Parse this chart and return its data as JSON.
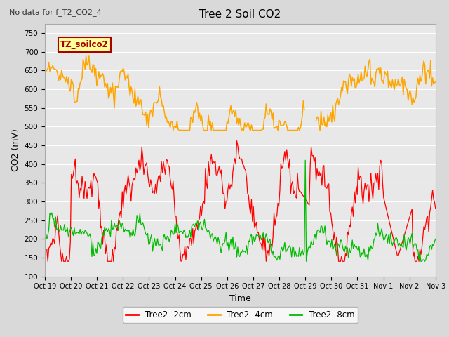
{
  "title": "Tree 2 Soil CO2",
  "no_data_label": "No data for f_T2_CO2_4",
  "ylabel": "CO2 (mV)",
  "xlabel": "Time",
  "legend_label": "TZ_soilco2",
  "ylim": [
    100,
    775
  ],
  "yticks": [
    100,
    150,
    200,
    250,
    300,
    350,
    400,
    450,
    500,
    550,
    600,
    650,
    700,
    750
  ],
  "series_labels": [
    "Tree2 -2cm",
    "Tree2 -4cm",
    "Tree2 -8cm"
  ],
  "series_colors": [
    "#ff0000",
    "#ffa500",
    "#00bb00"
  ],
  "xtick_labels": [
    "Oct 19",
    "Oct 20",
    "Oct 21",
    "Oct 22",
    "Oct 23",
    "Oct 24",
    "Oct 25",
    "Oct 26",
    "Oct 27",
    "Oct 28",
    "Oct 29",
    "Oct 30",
    "Oct 31",
    "Nov 1",
    "Nov 2",
    "Nov 3"
  ],
  "bg_color": "#d9d9d9",
  "plot_bg": "#e8e8e8",
  "grid_color": "#ffffff",
  "legend_box_facecolor": "#ffff99",
  "legend_box_edge": "#aa0000"
}
